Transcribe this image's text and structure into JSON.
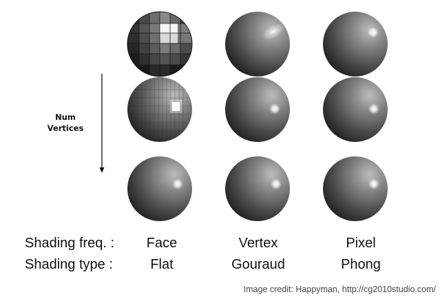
{
  "axis": {
    "label_line1": "Num",
    "label_line2": "Vertices"
  },
  "rows": {
    "frequency_label": "Shading freq. :",
    "type_label": "Shading type :"
  },
  "columns": [
    {
      "frequency": "Face",
      "type": "Flat"
    },
    {
      "frequency": "Vertex",
      "type": "Gouraud"
    },
    {
      "frequency": "Pixel",
      "type": "Phong"
    }
  ],
  "credit": "Image credit: Happyman, http://cg2010studio.com/",
  "colors": {
    "background": "#ffffff",
    "sphere_dark": "#0a0a0a",
    "sphere_mid": "#5a5a5a",
    "highlight": "#ffffff"
  }
}
